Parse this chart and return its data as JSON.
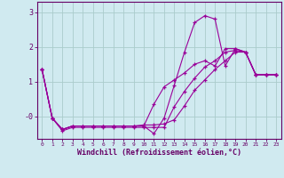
{
  "background_color": "#d0eaf0",
  "grid_color": "#aacccc",
  "line_color": "#990099",
  "marker": "+",
  "xlabel": "Windchill (Refroidissement éolien,°C)",
  "xlim": [
    -0.5,
    23.5
  ],
  "ylim": [
    -0.65,
    3.3
  ],
  "xticks": [
    0,
    1,
    2,
    3,
    4,
    5,
    6,
    7,
    8,
    9,
    10,
    11,
    12,
    13,
    14,
    15,
    16,
    17,
    18,
    19,
    20,
    21,
    22,
    23
  ],
  "yticks": [
    0,
    1,
    2,
    3
  ],
  "ytick_labels": [
    "-0",
    "1",
    "2",
    "3"
  ],
  "series": [
    [
      0,
      1.35
    ],
    [
      1,
      -0.05
    ],
    [
      2,
      -0.38
    ],
    [
      3,
      -0.28
    ],
    [
      4,
      -0.28
    ],
    [
      5,
      -0.28
    ],
    [
      6,
      -0.28
    ],
    [
      7,
      -0.28
    ],
    [
      8,
      -0.28
    ],
    [
      9,
      -0.28
    ],
    [
      10,
      -0.28
    ],
    [
      11,
      -0.5
    ],
    [
      12,
      -0.05
    ],
    [
      13,
      0.9
    ],
    [
      14,
      1.85
    ],
    [
      15,
      2.7
    ],
    [
      16,
      2.9
    ],
    [
      17,
      2.8
    ],
    [
      18,
      1.45
    ],
    [
      19,
      1.95
    ],
    [
      20,
      1.85
    ],
    [
      21,
      1.2
    ],
    [
      22,
      1.2
    ],
    [
      23,
      1.2
    ]
  ],
  "series2": [
    [
      0,
      1.35
    ],
    [
      1,
      -0.05
    ],
    [
      2,
      -0.38
    ],
    [
      3,
      -0.28
    ],
    [
      4,
      -0.28
    ],
    [
      5,
      -0.28
    ],
    [
      6,
      -0.28
    ],
    [
      7,
      -0.28
    ],
    [
      8,
      -0.28
    ],
    [
      9,
      -0.28
    ],
    [
      10,
      -0.28
    ],
    [
      11,
      0.35
    ],
    [
      12,
      0.85
    ],
    [
      13,
      1.05
    ],
    [
      14,
      1.25
    ],
    [
      15,
      1.5
    ],
    [
      16,
      1.6
    ],
    [
      17,
      1.45
    ],
    [
      18,
      1.95
    ],
    [
      19,
      1.95
    ],
    [
      20,
      1.85
    ],
    [
      21,
      1.2
    ],
    [
      22,
      1.2
    ],
    [
      23,
      1.2
    ]
  ],
  "series3": [
    [
      0,
      1.35
    ],
    [
      1,
      -0.05
    ],
    [
      2,
      -0.38
    ],
    [
      3,
      -0.28
    ],
    [
      4,
      -0.28
    ],
    [
      5,
      -0.28
    ],
    [
      6,
      -0.28
    ],
    [
      7,
      -0.28
    ],
    [
      8,
      -0.28
    ],
    [
      9,
      -0.28
    ],
    [
      10,
      -0.25
    ],
    [
      11,
      -0.25
    ],
    [
      12,
      -0.22
    ],
    [
      13,
      -0.1
    ],
    [
      14,
      0.3
    ],
    [
      15,
      0.75
    ],
    [
      16,
      1.05
    ],
    [
      17,
      1.35
    ],
    [
      18,
      1.6
    ],
    [
      19,
      1.85
    ],
    [
      20,
      1.85
    ],
    [
      21,
      1.2
    ],
    [
      22,
      1.2
    ],
    [
      23,
      1.2
    ]
  ],
  "series4": [
    [
      0,
      1.35
    ],
    [
      1,
      -0.05
    ],
    [
      2,
      -0.42
    ],
    [
      3,
      -0.32
    ],
    [
      4,
      -0.32
    ],
    [
      5,
      -0.32
    ],
    [
      6,
      -0.32
    ],
    [
      7,
      -0.32
    ],
    [
      8,
      -0.32
    ],
    [
      9,
      -0.32
    ],
    [
      10,
      -0.32
    ],
    [
      11,
      -0.32
    ],
    [
      12,
      -0.32
    ],
    [
      13,
      0.28
    ],
    [
      14,
      0.72
    ],
    [
      15,
      1.1
    ],
    [
      16,
      1.42
    ],
    [
      17,
      1.6
    ],
    [
      18,
      1.85
    ],
    [
      19,
      1.9
    ],
    [
      20,
      1.85
    ],
    [
      21,
      1.2
    ],
    [
      22,
      1.2
    ],
    [
      23,
      1.2
    ]
  ]
}
